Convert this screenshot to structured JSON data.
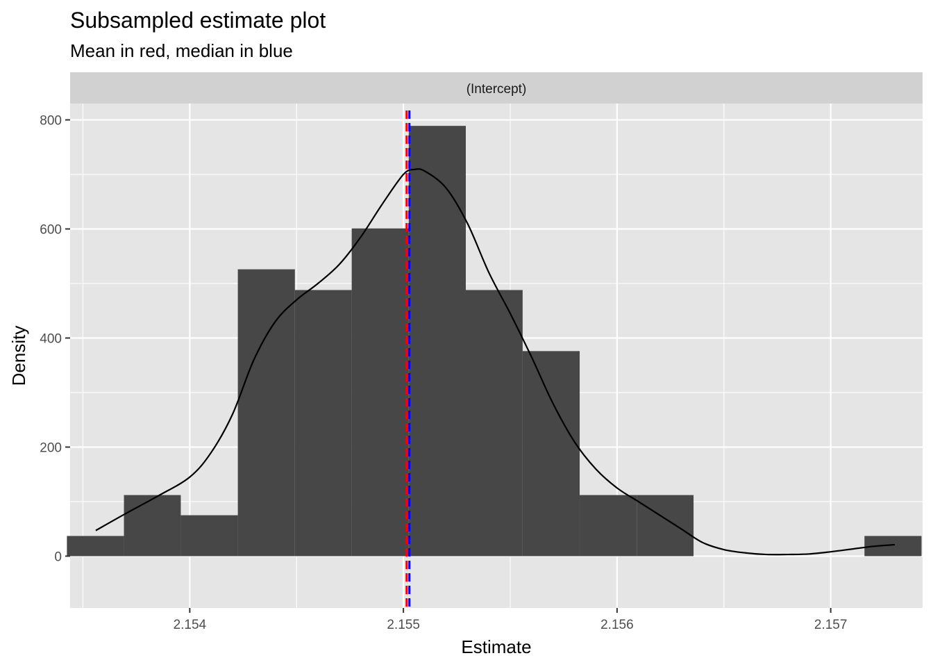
{
  "chart_data": {
    "type": "histogram",
    "title": "Subsampled estimate plot",
    "subtitle": "Mean in red, median in blue",
    "facet": "(Intercept)",
    "xlabel": "Estimate",
    "ylabel": "Density",
    "xlim": [
      2.15344,
      2.15743
    ],
    "ylim": [
      -95,
      830
    ],
    "x_ticks": [
      2.154,
      2.155,
      2.156,
      2.157
    ],
    "x_tick_labels": [
      "2.154",
      "2.155",
      "2.156",
      "2.157"
    ],
    "y_ticks": [
      0,
      200,
      400,
      600,
      800
    ],
    "y_tick_labels": [
      "0",
      "200",
      "400",
      "600",
      "800"
    ],
    "grid": true,
    "bins": [
      {
        "x0": 2.153425,
        "x1": 2.153692,
        "density": 37
      },
      {
        "x0": 2.153692,
        "x1": 2.153958,
        "density": 112
      },
      {
        "x0": 2.153958,
        "x1": 2.154225,
        "density": 75
      },
      {
        "x0": 2.154225,
        "x1": 2.154492,
        "density": 526
      },
      {
        "x0": 2.154492,
        "x1": 2.154758,
        "density": 488
      },
      {
        "x0": 2.154758,
        "x1": 2.155025,
        "density": 601
      },
      {
        "x0": 2.155025,
        "x1": 2.155292,
        "density": 789
      },
      {
        "x0": 2.155292,
        "x1": 2.155558,
        "density": 488
      },
      {
        "x0": 2.155558,
        "x1": 2.155825,
        "density": 376
      },
      {
        "x0": 2.155825,
        "x1": 2.156092,
        "density": 112
      },
      {
        "x0": 2.156092,
        "x1": 2.156358,
        "density": 112
      },
      {
        "x0": 2.157158,
        "x1": 2.157425,
        "density": 37
      }
    ],
    "density_curve": {
      "x": [
        2.15356,
        2.1537,
        2.15385,
        2.154,
        2.1541,
        2.1542,
        2.1543,
        2.1544,
        2.1545,
        2.1546,
        2.1547,
        2.1548,
        2.1549,
        2.155,
        2.15505,
        2.1551,
        2.1552,
        2.1553,
        2.1554,
        2.1555,
        2.1556,
        2.1557,
        2.1558,
        2.1559,
        2.156,
        2.1561,
        2.1562,
        2.1563,
        2.1564,
        2.1565,
        2.1566,
        2.1567,
        2.1568,
        2.1569,
        2.157,
        2.1571,
        2.1572,
        2.1573
      ],
      "y": [
        47,
        78,
        110,
        145,
        190,
        260,
        360,
        430,
        470,
        500,
        535,
        585,
        645,
        700,
        709,
        706,
        675,
        610,
        520,
        445,
        365,
        280,
        210,
        160,
        125,
        100,
        75,
        50,
        25,
        12,
        6,
        3,
        3,
        4,
        8,
        13,
        18,
        21
      ]
    },
    "mean": 2.155015,
    "median": 2.155028,
    "colors": {
      "panel": "#e5e5e5",
      "grid_major": "#ffffff",
      "strip": "#d1d1d1",
      "bar": "#474747",
      "curve": "#000000",
      "mean": "#ff0000",
      "median": "#0000ff"
    }
  }
}
